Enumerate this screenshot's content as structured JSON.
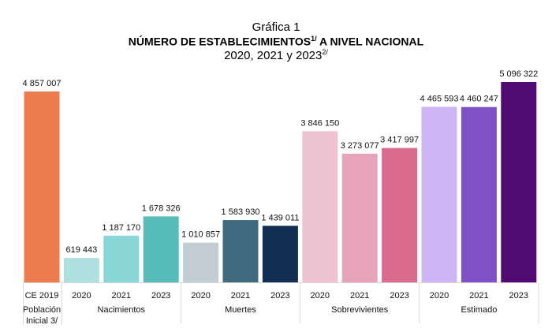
{
  "chart_data": {
    "type": "bar",
    "title": "Gráfica 1",
    "subtitle_main": "NÚMERO DE ESTABLECIMIENTOS",
    "subtitle_main_sup": "1/",
    "subtitle_main_rest": " A NIVEL NACIONAL",
    "subtitle_years": "2020, 2021 y 2023",
    "subtitle_years_sup": "2/",
    "xlabel": "",
    "ylabel": "",
    "ylim": [
      0,
      5096322
    ],
    "grid": false,
    "groups": [
      {
        "name": "Población Inicial 3/",
        "name_lines": [
          "Población",
          "Inicial 3/"
        ],
        "bars": [
          {
            "category": "CE 2019",
            "value": 4857007,
            "label": "4 857 007",
            "color": "#ED7D4F"
          }
        ]
      },
      {
        "name": "Nacimientos",
        "bars": [
          {
            "category": "2020",
            "value": 619443,
            "label": "619 443",
            "color": "#ADE0DE"
          },
          {
            "category": "2021",
            "value": 1187170,
            "label": "1 187 170",
            "color": "#88D6D6"
          },
          {
            "category": "2023",
            "value": 1678326,
            "label": "1 678 326",
            "color": "#58BCBA"
          }
        ]
      },
      {
        "name": "Muertes",
        "bars": [
          {
            "category": "2020",
            "value": 1010857,
            "label": "1 010 857",
            "color": "#C2CDD3"
          },
          {
            "category": "2021",
            "value": 1583930,
            "label": "1 583 930",
            "color": "#406A7D"
          },
          {
            "category": "2023",
            "value": 1439011,
            "label": "1 439 011",
            "color": "#132E53"
          }
        ]
      },
      {
        "name": "Sobrevivientes",
        "bars": [
          {
            "category": "2020",
            "value": 3846150,
            "label": "3 846 150",
            "color": "#EFC4D2"
          },
          {
            "category": "2021",
            "value": 3273077,
            "label": "3 273 077",
            "color": "#E6A3BA"
          },
          {
            "category": "2023",
            "value": 3417997,
            "label": "3 417 997",
            "color": "#D96C8E"
          }
        ]
      },
      {
        "name": "Estimado",
        "bars": [
          {
            "category": "2020",
            "value": 4465593,
            "label": "4 465 593",
            "color": "#CDB5F6"
          },
          {
            "category": "2021",
            "value": 4460247,
            "label": "4 460 247",
            "color": "#8050C6"
          },
          {
            "category": "2023",
            "value": 5096322,
            "label": "5 096 322",
            "color": "#500A72"
          }
        ]
      }
    ]
  }
}
